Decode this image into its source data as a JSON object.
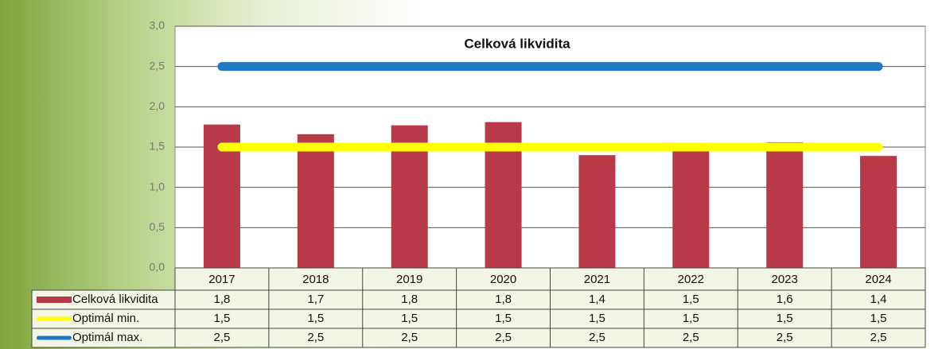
{
  "chart_data": {
    "type": "bar",
    "title": "Celková likvidita",
    "categories": [
      "2017",
      "2018",
      "2019",
      "2020",
      "2021",
      "2022",
      "2023",
      "2024"
    ],
    "series": [
      {
        "name": "Celková likvidita",
        "type": "bar",
        "color": "#b83a48",
        "values": [
          1.78,
          1.66,
          1.77,
          1.81,
          1.4,
          1.5,
          1.56,
          1.39
        ],
        "value_labels": [
          "1,8",
          "1,7",
          "1,8",
          "1,8",
          "1,4",
          "1,5",
          "1,6",
          "1,4"
        ]
      },
      {
        "name": "Optimál min.",
        "type": "line",
        "color": "#ffff00",
        "values": [
          1.5,
          1.5,
          1.5,
          1.5,
          1.5,
          1.5,
          1.5,
          1.5
        ],
        "value_labels": [
          "1,5",
          "1,5",
          "1,5",
          "1,5",
          "1,5",
          "1,5",
          "1,5",
          "1,5"
        ]
      },
      {
        "name": "Optimál max.",
        "type": "line",
        "color": "#1f78c1",
        "values": [
          2.5,
          2.5,
          2.5,
          2.5,
          2.5,
          2.5,
          2.5,
          2.5
        ],
        "value_labels": [
          "2,5",
          "2,5",
          "2,5",
          "2,5",
          "2,5",
          "2,5",
          "2,5",
          "2,5"
        ]
      }
    ],
    "ylim": [
      0,
      3
    ],
    "yticks": [
      {
        "value": 0,
        "label": "0,0"
      },
      {
        "value": 0.5,
        "label": "0,5"
      },
      {
        "value": 1,
        "label": "1,0"
      },
      {
        "value": 1.5,
        "label": "1,5"
      },
      {
        "value": 2,
        "label": "2,0"
      },
      {
        "value": 2.5,
        "label": "2,5"
      },
      {
        "value": 3,
        "label": "3,0"
      }
    ],
    "grid": true
  }
}
